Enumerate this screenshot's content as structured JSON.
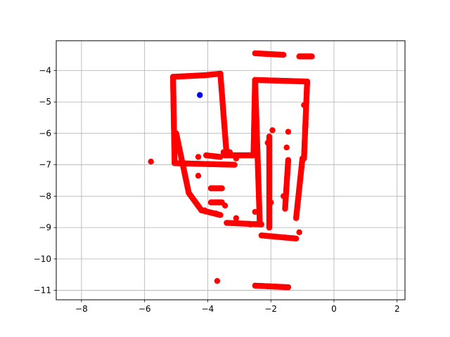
{
  "chart_data": {
    "type": "scatter",
    "title": "",
    "xlabel": "",
    "ylabel": "",
    "xlim": [
      -8.8,
      2.25
    ],
    "ylim": [
      -11.3,
      -3.05
    ],
    "xticks": [
      -8,
      -6,
      -4,
      -2,
      0,
      2
    ],
    "yticks": [
      -4,
      -5,
      -6,
      -7,
      -8,
      -9,
      -10,
      -11
    ],
    "xtick_labels": [
      "−8",
      "−6",
      "−4",
      "−2",
      "0",
      "2"
    ],
    "ytick_labels": [
      "−4",
      "−5",
      "−6",
      "−7",
      "−8",
      "−9",
      "−10",
      "−11"
    ],
    "grid": true,
    "legend": "none",
    "series": [
      {
        "color": "#ff0000",
        "segments": [
          [
            [
              -5.1,
              -4.2
            ],
            [
              -4.1,
              -4.15
            ]
          ],
          [
            [
              -5.1,
              -4.2
            ],
            [
              -5.05,
              -6.95
            ]
          ],
          [
            [
              -3.6,
              -4.1
            ],
            [
              -3.4,
              -6.7
            ]
          ],
          [
            [
              -4.1,
              -4.15
            ],
            [
              -3.6,
              -4.1
            ]
          ],
          [
            [
              -5.05,
              -6.95
            ],
            [
              -3.15,
              -7.0
            ]
          ],
          [
            [
              -5.0,
              -6.0
            ],
            [
              -4.6,
              -7.9
            ]
          ],
          [
            [
              -4.6,
              -7.9
            ],
            [
              -4.2,
              -8.45
            ]
          ],
          [
            [
              -4.2,
              -8.45
            ],
            [
              -3.6,
              -8.6
            ]
          ],
          [
            [
              -3.45,
              -6.7
            ],
            [
              -2.55,
              -6.7
            ]
          ],
          [
            [
              -2.55,
              -6.7
            ],
            [
              -2.5,
              -4.3
            ]
          ],
          [
            [
              -2.5,
              -4.3
            ],
            [
              -0.85,
              -4.35
            ]
          ],
          [
            [
              -0.85,
              -4.35
            ],
            [
              -0.95,
              -6.8
            ]
          ],
          [
            [
              -2.5,
              -4.3
            ],
            [
              -2.35,
              -8.9
            ]
          ],
          [
            [
              -3.4,
              -8.85
            ],
            [
              -2.3,
              -8.9
            ]
          ],
          [
            [
              -2.3,
              -9.25
            ],
            [
              -1.2,
              -9.35
            ]
          ],
          [
            [
              -2.05,
              -6.1
            ],
            [
              -2.05,
              -9.0
            ]
          ],
          [
            [
              -1.45,
              -6.85
            ],
            [
              -1.55,
              -8.4
            ]
          ],
          [
            [
              -1.0,
              -6.8
            ],
            [
              -1.2,
              -8.7
            ]
          ],
          [
            [
              -2.5,
              -3.45
            ],
            [
              -1.6,
              -3.5
            ]
          ],
          [
            [
              -1.1,
              -3.55
            ],
            [
              -0.7,
              -3.55
            ]
          ],
          [
            [
              -2.5,
              -10.85
            ],
            [
              -1.45,
              -10.9
            ]
          ],
          [
            [
              -3.9,
              -7.75
            ],
            [
              -3.55,
              -7.75
            ]
          ],
          [
            [
              -3.9,
              -8.2
            ],
            [
              -3.55,
              -8.2
            ]
          ],
          [
            [
              -3.5,
              -6.6
            ],
            [
              -3.3,
              -6.6
            ]
          ],
          [
            [
              -4.05,
              -6.7
            ],
            [
              -3.6,
              -6.75
            ]
          ]
        ],
        "points": [
          [
            -5.8,
            -6.9
          ],
          [
            -4.3,
            -7.35
          ],
          [
            -3.7,
            -10.7
          ],
          [
            -1.95,
            -5.9
          ],
          [
            -2.1,
            -6.3
          ],
          [
            -1.45,
            -5.95
          ],
          [
            -1.5,
            -6.45
          ],
          [
            -1.1,
            -9.15
          ],
          [
            -3.1,
            -8.7
          ],
          [
            -2.65,
            -8.9
          ],
          [
            -3.1,
            -6.8
          ],
          [
            -0.95,
            -5.1
          ],
          [
            -0.9,
            -5.7
          ],
          [
            -4.3,
            -6.75
          ],
          [
            -4.1,
            -8.45
          ],
          [
            -3.75,
            -8.55
          ],
          [
            -3.45,
            -8.3
          ],
          [
            -2.5,
            -8.5
          ],
          [
            -2.0,
            -8.2
          ],
          [
            -1.6,
            -8.0
          ]
        ]
      },
      {
        "color": "#0000ff",
        "points": [
          [
            -4.25,
            -4.78
          ]
        ]
      }
    ]
  }
}
